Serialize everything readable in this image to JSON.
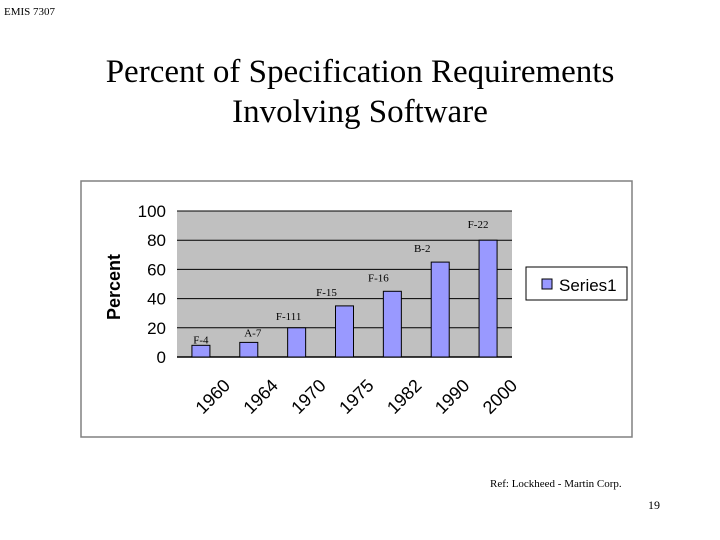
{
  "slide": {
    "header_label": "EMIS 7307",
    "title_line1": "Percent of Specification Requirements",
    "title_line2": "Involving Software",
    "reference": "Ref: Lockheed - Martin Corp.",
    "page_number": "19"
  },
  "chart_data": {
    "type": "bar",
    "categories": [
      "1960",
      "1964",
      "1970",
      "1975",
      "1982",
      "1990",
      "2000"
    ],
    "series": [
      {
        "name": "Series1",
        "values": [
          8,
          10,
          20,
          35,
          45,
          65,
          80
        ]
      }
    ],
    "annotations": [
      "F-4",
      "A-7",
      "F-111",
      "F-15",
      "F-16",
      "B-2",
      "F-22"
    ],
    "title": "",
    "xlabel": "",
    "ylabel": "Percent",
    "ylim": [
      0,
      100
    ],
    "yticks": [
      0,
      20,
      40,
      60,
      80,
      100
    ],
    "grid": true,
    "legend": "right",
    "colors": {
      "bar_fill": "#9999ff",
      "bar_stroke": "#000000",
      "plot_background": "#c0c0c0",
      "gridline": "#000000",
      "frame": "#808080"
    }
  }
}
